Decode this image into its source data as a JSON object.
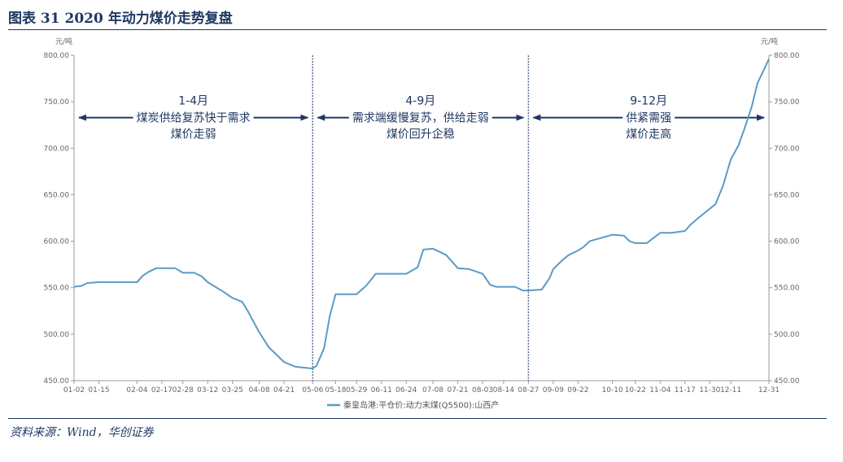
{
  "figure": {
    "title": "图表 31    2020 年动力煤价走势复盘",
    "source": "资料来源：Wind，华创证券"
  },
  "colors": {
    "line": "#5b9bc5",
    "divider": "#5a6e90",
    "annotation": "#1f3864",
    "axis": "#999999",
    "text": "#666666"
  },
  "chart_data": {
    "type": "line",
    "y_unit_left": "元/吨",
    "y_unit_right": "元/吨",
    "ylim": [
      450,
      800
    ],
    "yticks": [
      450,
      500,
      550,
      600,
      650,
      700,
      750,
      800
    ],
    "ytick_labels": [
      "450.00",
      "500.00",
      "550.00",
      "600.00",
      "650.00",
      "700.00",
      "750.00",
      "800.00"
    ],
    "grid": false,
    "legend_position": "bottom-center",
    "x_tick_labels": [
      "01-02",
      "01-15",
      "02-04",
      "02-17",
      "02-28",
      "03-12",
      "03-25",
      "04-08",
      "04-21",
      "05-06",
      "05-18",
      "05-29",
      "06-11",
      "06-24",
      "07-08",
      "07-21",
      "08-03",
      "08-14",
      "08-27",
      "09-09",
      "09-22",
      "10-10",
      "10-22",
      "11-04",
      "11-17",
      "11-30",
      "12-11",
      "12-31"
    ],
    "series": [
      {
        "name": "秦皇岛港:平仓价:动力末煤(Q5500):山西产",
        "points": [
          [
            "01-02",
            551
          ],
          [
            "01-06",
            552
          ],
          [
            "01-09",
            555
          ],
          [
            "01-15",
            556
          ],
          [
            "01-23",
            556
          ],
          [
            "02-04",
            556
          ],
          [
            "02-07",
            563
          ],
          [
            "02-10",
            567
          ],
          [
            "02-14",
            571
          ],
          [
            "02-17",
            571
          ],
          [
            "02-24",
            571
          ],
          [
            "02-28",
            566
          ],
          [
            "03-05",
            566
          ],
          [
            "03-09",
            562
          ],
          [
            "03-12",
            556
          ],
          [
            "03-16",
            551
          ],
          [
            "03-20",
            546
          ],
          [
            "03-25",
            539
          ],
          [
            "03-30",
            535
          ],
          [
            "04-02",
            525
          ],
          [
            "04-08",
            502
          ],
          [
            "04-13",
            486
          ],
          [
            "04-17",
            478
          ],
          [
            "04-21",
            470
          ],
          [
            "04-27",
            465
          ],
          [
            "05-06",
            463
          ],
          [
            "05-08",
            466
          ],
          [
            "05-12",
            485
          ],
          [
            "05-15",
            520
          ],
          [
            "05-18",
            543
          ],
          [
            "05-22",
            543
          ],
          [
            "05-29",
            543
          ],
          [
            "06-03",
            552
          ],
          [
            "06-08",
            565
          ],
          [
            "06-11",
            565
          ],
          [
            "06-16",
            565
          ],
          [
            "06-24",
            565
          ],
          [
            "06-30",
            572
          ],
          [
            "07-03",
            591
          ],
          [
            "07-08",
            592
          ],
          [
            "07-15",
            585
          ],
          [
            "07-21",
            571
          ],
          [
            "07-27",
            570
          ],
          [
            "08-03",
            565
          ],
          [
            "08-07",
            553
          ],
          [
            "08-10",
            551
          ],
          [
            "08-14",
            551
          ],
          [
            "08-20",
            551
          ],
          [
            "08-24",
            547
          ],
          [
            "08-27",
            547
          ],
          [
            "09-03",
            548
          ],
          [
            "09-07",
            560
          ],
          [
            "09-09",
            570
          ],
          [
            "09-14",
            580
          ],
          [
            "09-17",
            585
          ],
          [
            "09-22",
            590
          ],
          [
            "09-25",
            594
          ],
          [
            "09-28",
            600
          ],
          [
            "10-10",
            607
          ],
          [
            "10-16",
            606
          ],
          [
            "10-19",
            600
          ],
          [
            "10-22",
            598
          ],
          [
            "10-28",
            598
          ],
          [
            "11-04",
            609
          ],
          [
            "11-10",
            609
          ],
          [
            "11-17",
            611
          ],
          [
            "11-20",
            618
          ],
          [
            "11-24",
            625
          ],
          [
            "11-30",
            635
          ],
          [
            "12-03",
            640
          ],
          [
            "12-07",
            660
          ],
          [
            "12-11",
            688
          ],
          [
            "12-15",
            703
          ],
          [
            "12-18",
            720
          ],
          [
            "12-22",
            745
          ],
          [
            "12-25",
            770
          ],
          [
            "12-31",
            796
          ]
        ]
      }
    ],
    "annotations": [
      {
        "period": "1-4月",
        "line1": "煤炭供给复苏快于需求",
        "line2": "煤价走弱"
      },
      {
        "period": "4-9月",
        "line1": "需求端缓慢复苏，供给走弱",
        "line2": "煤价回升企稳"
      },
      {
        "period": "9-12月",
        "line1": "供紧需强",
        "line2": "煤价走高"
      }
    ],
    "dividers": [
      "05-06",
      "08-27"
    ]
  }
}
